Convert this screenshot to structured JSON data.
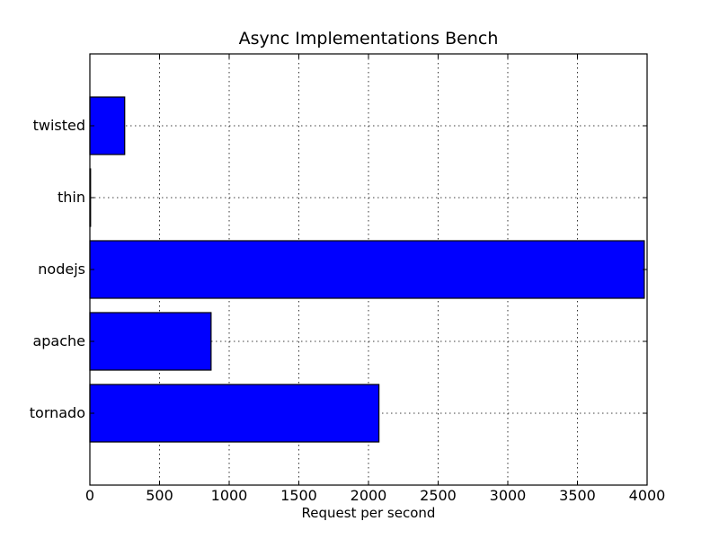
{
  "chart_data": {
    "type": "bar",
    "orientation": "horizontal",
    "title": "Async Implementations Bench",
    "xlabel": "Request per second",
    "ylabel": "",
    "categories": [
      "tornado",
      "apache",
      "nodejs",
      "thin",
      "twisted"
    ],
    "values": [
      2075,
      870,
      3980,
      5,
      250
    ],
    "xlim": [
      0,
      4000
    ],
    "xticks": [
      0,
      500,
      1000,
      1500,
      2000,
      2500,
      3000,
      3500,
      4000
    ],
    "grid": true,
    "bar_color": "#0000ff",
    "edge_color": "#000000"
  }
}
